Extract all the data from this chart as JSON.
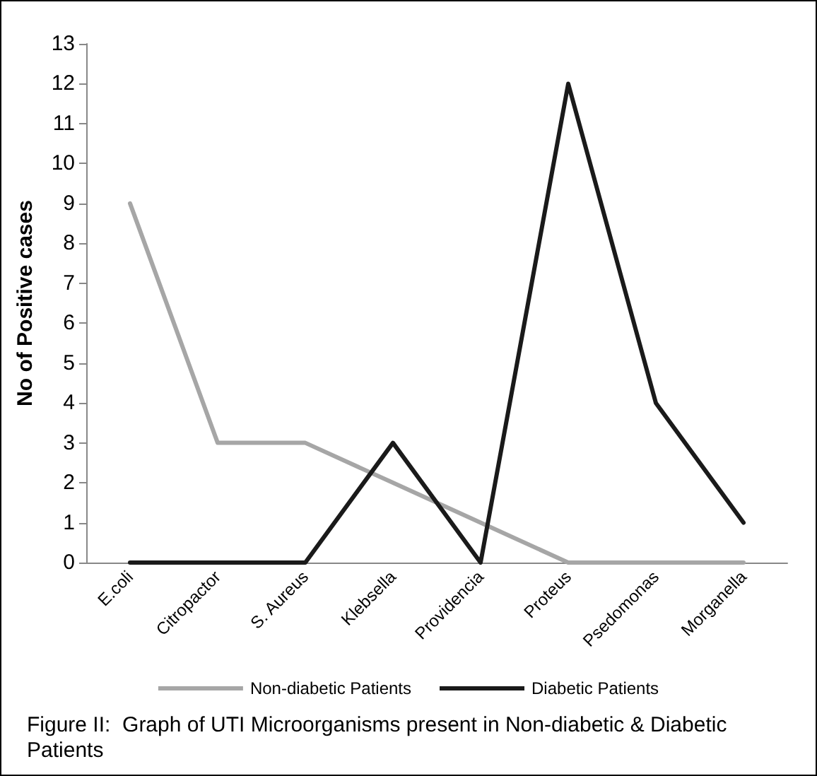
{
  "chart_data": {
    "type": "line",
    "ylabel": "No of Positive cases",
    "categories": [
      "E.coli",
      "Citropactor",
      "S. Aureus",
      "Klebsella",
      "Providencia",
      "Proteus",
      "Psedomonas",
      "Morganella"
    ],
    "series": [
      {
        "name": "Non-diabetic Patients",
        "color": "#a6a6a6",
        "values": [
          9,
          3,
          3,
          2,
          1,
          0,
          0,
          0
        ]
      },
      {
        "name": "Diabetic Patients",
        "color": "#1a1a1a",
        "values": [
          0,
          0,
          0,
          3,
          0,
          12,
          4,
          1
        ]
      }
    ],
    "ylim": [
      0,
      13
    ],
    "yticks": [
      0,
      1,
      2,
      3,
      4,
      5,
      6,
      7,
      8,
      9,
      10,
      11,
      12,
      13
    ],
    "grid": false,
    "legend": "bottom",
    "marker": "none",
    "line_style": "solid",
    "annotations": [
      "Figure II:  Graph of UTI Microorganisms present in Non-diabetic & Diabetic Patients"
    ]
  }
}
